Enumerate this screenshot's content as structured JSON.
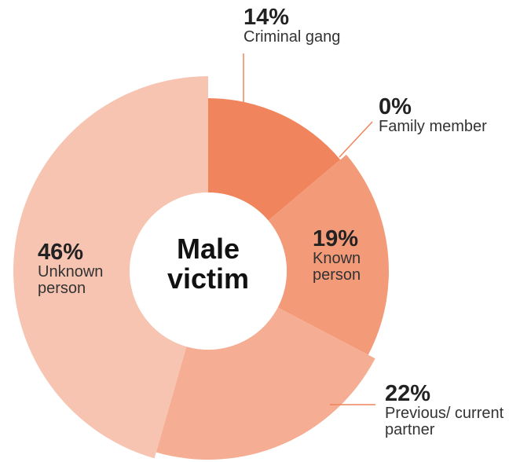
{
  "chart_data": {
    "type": "pie",
    "title": "Male victim",
    "categories": [
      "Criminal gang",
      "Family member",
      "Known person",
      "Previous/ current partner",
      "Unknown person"
    ],
    "values": [
      14,
      0,
      19,
      22,
      46
    ],
    "value_labels": [
      "14%",
      "0%",
      "19%",
      "22%",
      "46%"
    ],
    "colors": [
      "#f0845c",
      "#ee8a66",
      "#f39a78",
      "#f5ae93",
      "#f7c4b1"
    ]
  }
}
